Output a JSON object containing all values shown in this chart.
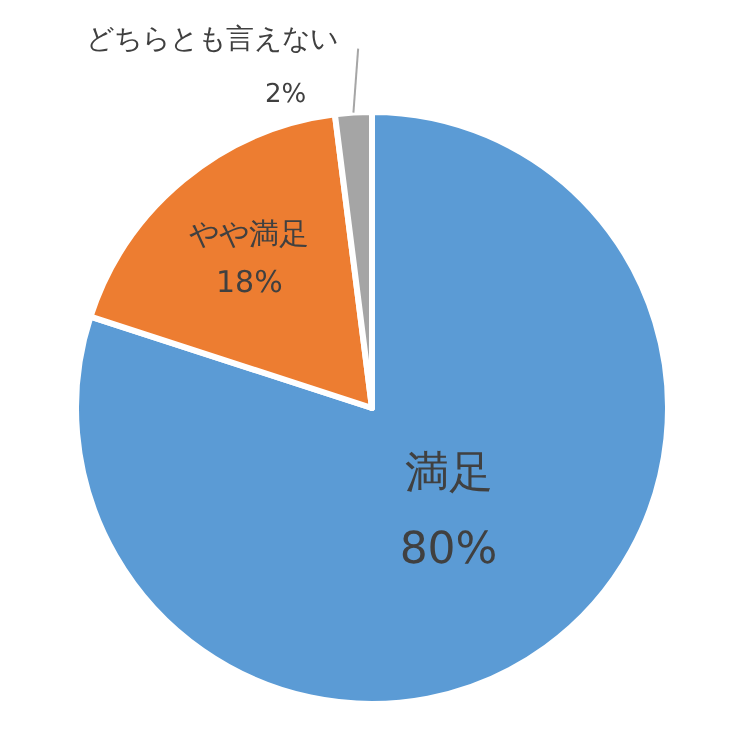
{
  "chart_data": {
    "type": "pie",
    "categories": [
      "満足",
      "やや満足",
      "どちらとも言えない"
    ],
    "values": [
      80,
      18,
      2
    ],
    "colors": [
      "#5b9bd5",
      "#ed7d31",
      "#a5a5a5"
    ],
    "value_labels": [
      "80%",
      "18%",
      "2%"
    ]
  }
}
